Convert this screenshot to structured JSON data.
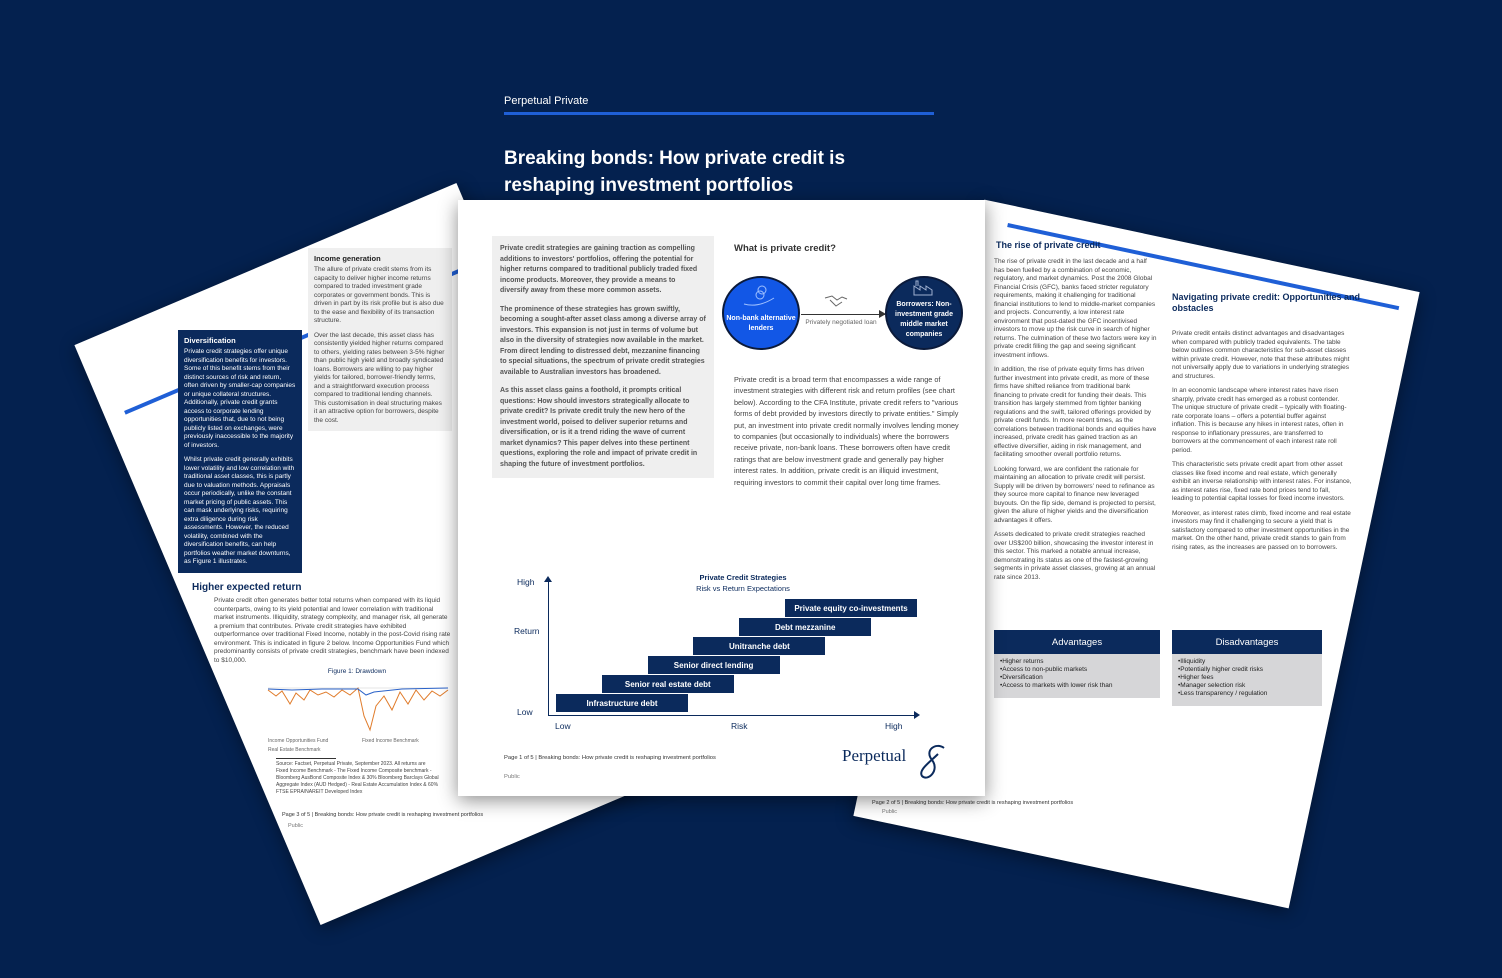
{
  "center_page": {
    "brand": "Perpetual Private",
    "title_line1": "Breaking bonds: How private credit is",
    "title_line2": "reshaping investment portfolios",
    "intro": [
      "Private credit strategies are gaining traction as compelling additions to investors' portfolios, offering the potential for higher returns compared to traditional publicly traded fixed income products. Moreover, they provide a means to diversify away from these more common assets.",
      "The prominence of these strategies has grown swiftly, becoming a sought-after asset class among a diverse array of investors. This expansion is not just in terms of volume but also in the diversity of strategies now available in the market. From direct lending to distressed debt, mezzanine financing to special situations, the spectrum of private credit strategies available to Australian investors has broadened.",
      "As this asset class gains a foothold, it prompts critical questions: How should investors strategically allocate to private credit? Is private credit truly the new hero of the investment world, poised to deliver superior returns and diversification, or is it a trend riding the wave of current market dynamics? This paper delves into these pertinent questions, exploring the role and impact of private credit in shaping the future of investment portfolios."
    ],
    "what_heading": "What is private credit?",
    "lender_label": "Non-bank alternative lenders",
    "loan_label": "Privately negotiated loan",
    "borrower_label": "Borrowers: Non-investment grade middle market companies",
    "definition": "Private credit is a broad term that encompasses a wide range of investment strategies with different risk and return profiles (see chart below). According to the CFA Institute, private credit refers to \"various forms of debt provided by investors directly to private entities.\" Simply put, an investment into private credit normally involves lending money to companies (but occasionally to individuals) where the borrowers receive private, non-bank loans. These borrowers often have credit ratings that are below investment grade and generally pay higher interest rates. In addition, private credit is an illiquid investment, requiring investors to commit their capital over long time frames.",
    "chart": {
      "title": "Private Credit Strategies",
      "subtitle": "Risk vs Return Expectations",
      "y_high": "High",
      "y_label": "Return",
      "y_low": "Low",
      "x_low": "Low",
      "x_label": "Risk",
      "x_high": "High",
      "strategies": [
        "Infrastructure debt",
        "Senior real estate debt",
        "Senior direct lending",
        "Unitranche debt",
        "Debt mezzanine",
        "Private equity co-investments"
      ]
    },
    "footer": "Page 1 of 5  |  Breaking bonds: How private credit is reshaping investment portfolios",
    "classification": "Public",
    "logo": "Perpetual"
  },
  "left_page": {
    "div_heading": "Diversification",
    "div_text1": "Private credit strategies offer unique diversification benefits for investors. Some of this benefit stems from their distinct sources of risk and return, often driven by smaller-cap companies or unique collateral structures. Additionally, private credit grants access to corporate lending opportunities that, due to not being publicly listed on exchanges, were previously inaccessible to the majority of investors.",
    "div_text2": "Whilst private credit generally exhibits lower volatility and low correlation with traditional asset classes, this is partly due to valuation methods. Appraisals occur periodically, unlike the constant market pricing of public assets. This can mask underlying risks, requiring extra diligence during risk assessments. However, the reduced volatility, combined with the diversification benefits, can help portfolios weather market downturns, as Figure 1 illustrates.",
    "income_heading": "Income generation",
    "income_text1": "The allure of private credit stems from its capacity to deliver higher income returns compared to traded investment grade corporates or government bonds. This is driven in part by its risk profile but is also due to the ease and flexibility of its transaction structure.",
    "income_text2": "Over the last decade, this asset class has consistently yielded higher returns compared to others, yielding rates between 3-5% higher than public high yield and broadly syndicated loans. Borrowers are willing to pay higher yields for tailored, borrower-friendly terms, and a straightforward execution process compared to traditional lending channels. This customisation in deal structuring makes it an attractive option for borrowers, despite the cost.",
    "her_heading": "Higher expected return",
    "her_text": "Private credit often generates better total returns when compared with its liquid counterparts, owing to its yield potential and lower correlation with traditional market instruments. Illiquidity, strategy complexity, and manager risk, all generate a premium that contributes. Private credit strategies have exhibited outperformance over traditional Fixed Income, notably in the post-Covid rising rate environment. This is indicated in figure 2 below. Income Opportunities Fund which predominantly consists of private credit strategies, benchmark have been indexed to $10,000.",
    "figure_title": "Figure 1: Drawdown",
    "legend_a": "Income Opportunities Fund",
    "legend_b": "Fixed Income Benchmark",
    "legend_c": "Real Estate Benchmark",
    "footnote1": "Source: Factset, Perpetual Private, September 2023. All returns are",
    "footnote2": "Fixed Income Benchmark - The Fixed Income Composite benchmark - Bloomberg AusBond Composite Index & 30% Bloomberg Barclays Global Aggregate Index (AUD Hedged) - Real Estate Accumulation Index & 60% FTSE EPRA/NAREIT Developed Index",
    "footer": "Page 3 of 5  |  Breaking bonds: How private credit is reshaping investment portfolios",
    "classification": "Public"
  },
  "right_page": {
    "rise_heading": "The rise of private credit",
    "rise_text1": "The rise of private credit in the last decade and a half has been fuelled by a combination of economic, regulatory, and market dynamics. Post the 2008 Global Financial Crisis (GFC), banks faced stricter regulatory requirements, making it challenging for traditional financial institutions to lend to middle-market companies and projects. Concurrently, a low interest rate environment that post-dated the GFC incentivised investors to move up the risk curve in search of higher returns. The culmination of these two factors were key in private credit filling the gap and seeing significant investment inflows.",
    "rise_text2": "In addition, the rise of private equity firms has driven further investment into private credit, as more of these firms have shifted reliance from traditional bank financing to private credit for funding their deals. This transition has largely stemmed from tighter banking regulations and the swift, tailored offerings provided by private credit funds. In more recent times, as the correlations between traditional bonds and equities have increased, private credit has gained traction as an effective diversifier, aiding in risk management, and facilitating smoother overall portfolio returns.",
    "rise_text3": "Looking forward, we are confident the rationale for maintaining an allocation to private credit will persist. Supply will be driven by borrowers' need to refinance as they source more capital to finance new leveraged buyouts. On the flip side, demand is projected to persist, given the allure of higher yields and the diversification advantages it offers.",
    "rise_text4": "Assets dedicated to private credit strategies reached over US$200 billion, showcasing the investor interest in this sector. This marked a notable annual increase, demonstrating its status as one of the fastest-growing segments in private asset classes, growing at an annual rate since 2013.",
    "nav_heading": "Navigating private credit: Opportunities and obstacles",
    "nav_text1": "Private credit entails distinct advantages and disadvantages when compared with publicly traded equivalents. The table below outlines common characteristics for sub-asset classes within private credit. However, note that these attributes might not universally apply due to variations in underlying strategies and structures.",
    "nav_text2": "In an economic landscape where interest rates have risen sharply, private credit has emerged as a robust contender. The unique structure of private credit – typically with floating-rate corporate loans – offers a potential buffer against inflation. This is because any hikes in interest rates, often in response to inflationary pressures, are transferred to borrowers at the commencement of each interest rate roll period.",
    "nav_text3": "This characteristic sets private credit apart from other asset classes like fixed income and real estate, which generally exhibit an inverse relationship with interest rates. For instance, as interest rates rise, fixed rate bond prices tend to fall, leading to potential capital losses for fixed income investors.",
    "nav_text4": "Moreover, as interest rates climb, fixed income and real estate investors may find it challenging to secure a yield that is satisfactory compared to other investment opportunities in the market. On the other hand, private credit stands to gain from rising rates, as the increases are passed on to borrowers.",
    "adv_heading": "Advantages",
    "adv_items": [
      "•Higher returns",
      "•Access to non-public markets",
      "•Diversification",
      "•Access to markets with lower risk than"
    ],
    "dis_heading": "Disadvantages",
    "dis_items": [
      "•Illiquidity",
      "•Potentially higher credit risks",
      "•Higher fees",
      "•Manager selection risk",
      "•Less transparency / regulation"
    ],
    "footer": "Page 2 of 5  |  Breaking bonds: How private credit is reshaping investment portfolios",
    "classification": "Public"
  },
  "colors": {
    "background": "#04214f",
    "navy": "#0b2a5c",
    "accent_blue": "#1f5fd6",
    "lender_blue": "#1257e6",
    "fund_line": "#2a62c9",
    "benchmark_line": "#e07b2a"
  }
}
